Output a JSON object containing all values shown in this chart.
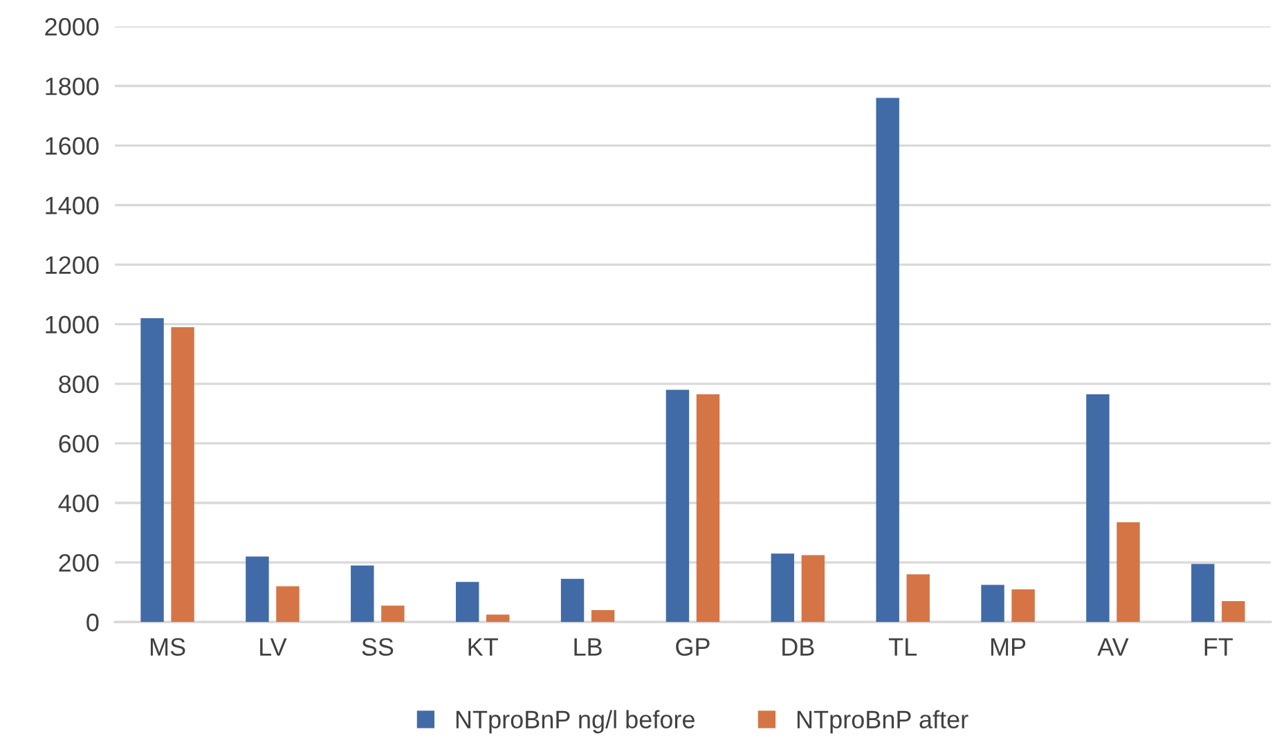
{
  "chart_data": {
    "type": "bar",
    "categories": [
      "MS",
      "LV",
      "SS",
      "KT",
      "LB",
      "GP",
      "DB",
      "TL",
      "MP",
      "AV",
      "FT"
    ],
    "series": [
      {
        "name": "NTproBnP ng/l before",
        "color": "#416ba7",
        "values": [
          1020,
          220,
          190,
          135,
          145,
          780,
          230,
          1760,
          125,
          765,
          195
        ]
      },
      {
        "name": "NTproBnP after",
        "color": "#d57545",
        "values": [
          990,
          120,
          55,
          25,
          40,
          765,
          225,
          160,
          110,
          335,
          70
        ]
      }
    ],
    "ylim": [
      0,
      2000
    ],
    "yticks": [
      0,
      200,
      400,
      600,
      800,
      1000,
      1200,
      1400,
      1600,
      1800,
      2000
    ],
    "grid": "y",
    "legend": "bottom"
  }
}
